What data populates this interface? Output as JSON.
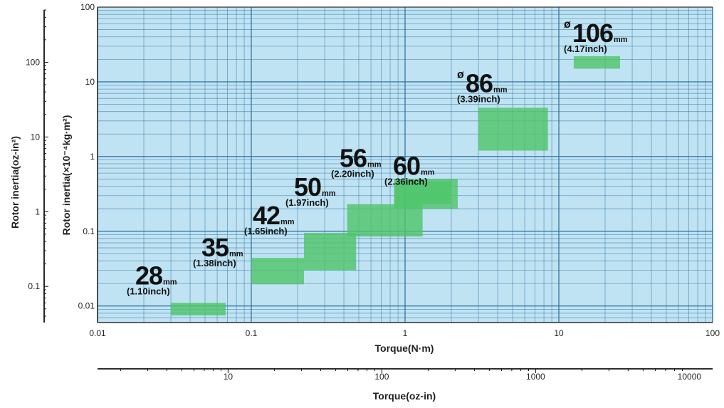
{
  "chart_data": {
    "type": "area",
    "xlabel": "Torque(N·m)",
    "xlabel2": "Torque(oz-in)",
    "ylabel": "Rotor inertia(×10⁻⁴kg·m²)",
    "ylabel2": "Rotor inertia(oz-in²)",
    "x_scale": "log",
    "y_scale": "log",
    "xlim": [
      0.01,
      100
    ],
    "ylim": [
      0.006,
      100
    ],
    "grid": true,
    "x_ticks": [
      "0.01",
      "0.1",
      "1",
      "10",
      "100"
    ],
    "x_ticks_values": [
      0.01,
      0.1,
      1,
      10,
      100
    ],
    "y_ticks": [
      "0.01",
      "0.1",
      "1",
      "10",
      "100"
    ],
    "y_ticks_values": [
      0.01,
      0.1,
      1,
      10,
      100
    ],
    "x2_ticks": [
      "10",
      "100",
      "1000",
      "10000"
    ],
    "x2_ticks_values": [
      10,
      100,
      1000,
      10000
    ],
    "y2_ticks": [
      "0.1",
      "1",
      "10",
      "100"
    ],
    "y2_ticks_values": [
      0.1,
      1,
      10,
      100
    ],
    "colors": {
      "region": "#4fc46b",
      "plot_bg": "#bfe3f2",
      "grid": "#2f6fa0"
    },
    "regions": [
      {
        "size": "28",
        "unit": "mm",
        "inch": "(1.10inch)",
        "phi": "",
        "torque": [
          0.03,
          0.068
        ],
        "inertia": [
          0.0075,
          0.011
        ]
      },
      {
        "size": "35",
        "unit": "mm",
        "inch": "(1.38inch)",
        "phi": "",
        "torque": [
          0.1,
          0.22
        ],
        "inertia": [
          0.0195,
          0.044
        ]
      },
      {
        "size": "42",
        "unit": "mm",
        "inch": "(1.65inch)",
        "phi": "",
        "torque": [
          0.22,
          0.48
        ],
        "inertia": [
          0.03,
          0.095
        ]
      },
      {
        "size": "50",
        "unit": "mm",
        "inch": "(1.97inch)",
        "phi": "",
        "torque": [
          0.42,
          1.3
        ],
        "inertia": [
          0.085,
          0.23
        ]
      },
      {
        "size": "56",
        "unit": "mm",
        "inch": "(2.20inch)",
        "phi": "",
        "torque": [
          0.85,
          2.0
        ],
        "inertia": [
          0.23,
          0.47
        ]
      },
      {
        "size": "60",
        "unit": "mm",
        "inch": "(2.36inch)",
        "phi": "",
        "torque": [
          0.85,
          2.2
        ],
        "inertia": [
          0.2,
          0.5
        ]
      },
      {
        "size": "86",
        "unit": "mm",
        "inch": "(3.39inch)",
        "phi": "ø",
        "torque": [
          3.0,
          8.5
        ],
        "inertia": [
          1.2,
          4.5
        ]
      },
      {
        "size": "106",
        "unit": "mm",
        "inch": "(4.17inch)",
        "phi": "ø",
        "torque": [
          12.5,
          25.0
        ],
        "inertia": [
          15.0,
          22.0
        ]
      }
    ]
  }
}
